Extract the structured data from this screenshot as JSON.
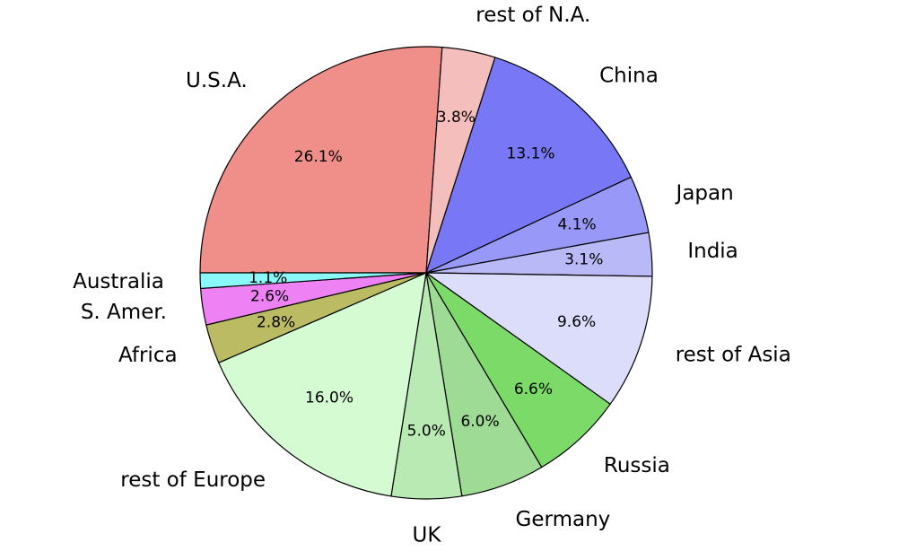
{
  "chart_data": {
    "type": "pie",
    "title": "",
    "start_direction": "left",
    "rotation": "clockwise",
    "slices": [
      {
        "label": "U.S.A.",
        "value": 26.1,
        "pct_text": "26.1%",
        "color": "#f08e8a"
      },
      {
        "label": "rest of N.A.",
        "value": 3.8,
        "pct_text": "3.8%",
        "color": "#f4bebd"
      },
      {
        "label": "China",
        "value": 13.1,
        "pct_text": "13.1%",
        "color": "#7878f7"
      },
      {
        "label": "Japan",
        "value": 4.1,
        "pct_text": "4.1%",
        "color": "#9898f8"
      },
      {
        "label": "India",
        "value": 3.1,
        "pct_text": "3.1%",
        "color": "#b9b9f8"
      },
      {
        "label": "rest of Asia",
        "value": 9.6,
        "pct_text": "9.6%",
        "color": "#dcdcfb"
      },
      {
        "label": "Russia",
        "value": 6.6,
        "pct_text": "6.6%",
        "color": "#7cda68"
      },
      {
        "label": "Germany",
        "value": 6.0,
        "pct_text": "6.0%",
        "color": "#9edb94"
      },
      {
        "label": "UK",
        "value": 5.0,
        "pct_text": "5.0%",
        "color": "#b9eab4"
      },
      {
        "label": "rest of Europe",
        "value": 16.0,
        "pct_text": "16.0%",
        "color": "#d5fbd3"
      },
      {
        "label": "Africa",
        "value": 2.8,
        "pct_text": "2.8%",
        "color": "#bbbb64"
      },
      {
        "label": "S. Amer.",
        "value": 2.6,
        "pct_text": "2.6%",
        "color": "#ee82f4"
      },
      {
        "label": "Australia",
        "value": 1.1,
        "pct_text": "1.1%",
        "color": "#8af7f9"
      }
    ]
  }
}
